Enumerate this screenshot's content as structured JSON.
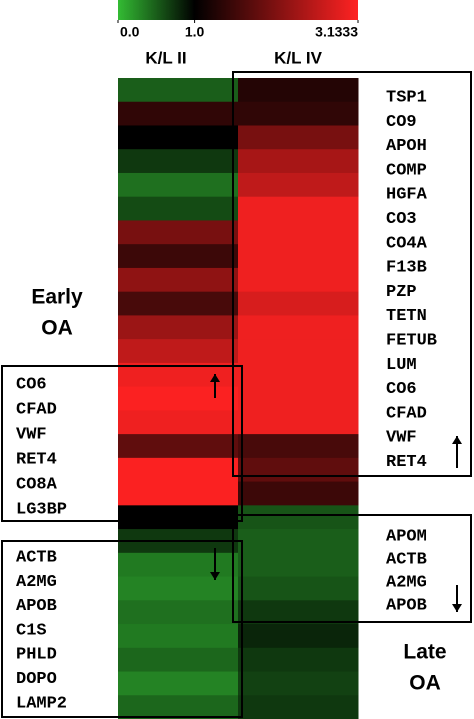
{
  "chart_data": {
    "type": "heatmap",
    "zlim": [
      0,
      3.1333
    ],
    "zticks": [
      {
        "value": 0,
        "label": "0.0"
      },
      {
        "value": 1,
        "label": "1.0"
      },
      3.1333
    ],
    "colors": [
      "#33bb33",
      "#000000",
      "#ff2222"
    ],
    "series": [
      {
        "name": "K/L II",
        "values": [
          0.5,
          1.4,
          1.0,
          0.7,
          0.4,
          0.6,
          2.0,
          1.5,
          2.2,
          1.6,
          2.3,
          2.6,
          3.0,
          3.1,
          3.0,
          1.8,
          3.1,
          3.1,
          1.0,
          0.7,
          0.35,
          0.3,
          0.4,
          0.35,
          0.45,
          0.3,
          0.45
        ]
      },
      {
        "name": "K/L IV",
        "values": [
          1.3,
          1.4,
          2.0,
          2.4,
          2.6,
          3.0,
          3.0,
          3.0,
          3.0,
          2.8,
          3.0,
          3.0,
          3.0,
          3.0,
          3.0,
          1.6,
          1.8,
          1.5,
          0.55,
          0.5,
          0.5,
          0.55,
          0.7,
          0.8,
          0.7,
          0.65,
          0.7
        ]
      }
    ],
    "boxes": [
      {
        "labels": [
          "CO6",
          "CFAD",
          "VWF",
          "RET4",
          "CO8A",
          "LG3BP"
        ]
      },
      {
        "labels": [
          "ACTB",
          "A2MG",
          "APOB",
          "C1S",
          "PHLD",
          "DOPO",
          "LAMP2"
        ]
      },
      {
        "labels": [
          "TSP1",
          "CO9",
          "APOH",
          "COMP",
          "HGFA",
          "CO3",
          "CO4A",
          "F13B",
          "PZP",
          "TETN",
          "FETUB",
          "LUM",
          "CO6",
          "CFAD",
          "VWF",
          "RET4"
        ]
      },
      {
        "labels": [
          "APOM",
          "ACTB",
          "A2MG",
          "APOB"
        ]
      }
    ],
    "annotations": [
      {
        "lines": [
          "Early",
          "OA"
        ]
      },
      {
        "lines": [
          "Late",
          "OA"
        ]
      }
    ]
  }
}
